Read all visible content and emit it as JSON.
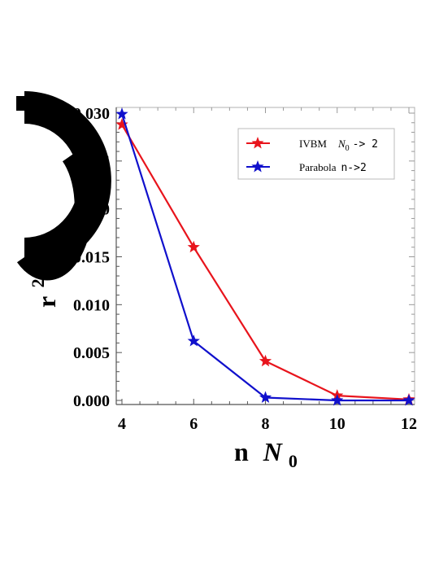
{
  "chart_data": {
    "type": "line",
    "xlabel": {
      "prefix": "n",
      "symbol": "N",
      "subscript": "0"
    },
    "ylabel": {
      "prefix": "r",
      "superscript": "2"
    },
    "xlim": [
      4,
      12
    ],
    "ylim": [
      0,
      0.03
    ],
    "x_ticks": [
      "4",
      "6",
      "8",
      "10",
      "12"
    ],
    "x_tick_values": [
      4,
      6,
      8,
      10,
      12
    ],
    "y_ticks": [
      "0.000",
      "0.005",
      "0.010",
      "0.015",
      "0.020",
      "0.025",
      "0.030"
    ],
    "y_tick_values": [
      0,
      0.005,
      0.01,
      0.015,
      0.02,
      0.025,
      0.03
    ],
    "legend_position": "top-right",
    "series": [
      {
        "name": "IVBM",
        "name_suffix": "N0 -> 2",
        "name_symbol": "N",
        "name_subscript": "0",
        "name_arrow": "-> 2",
        "color": "#e8141c",
        "marker": "star",
        "x": [
          4,
          6,
          8,
          10,
          12
        ],
        "y": [
          0.0288,
          0.016,
          0.0041,
          0.0005,
          0.0001
        ]
      },
      {
        "name": "Parabola",
        "name_arrow": "n->2",
        "color": "#1010cc",
        "marker": "star",
        "x": [
          4,
          6,
          8,
          10,
          12
        ],
        "y": [
          0.0299,
          0.0062,
          0.0003,
          0.0,
          0.0
        ]
      }
    ]
  }
}
